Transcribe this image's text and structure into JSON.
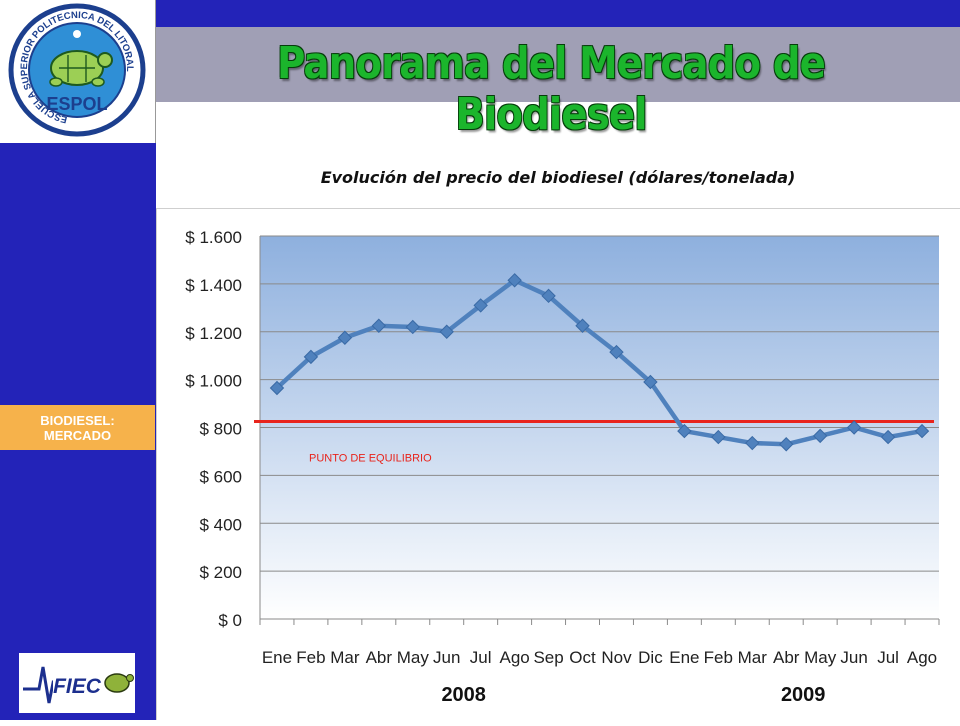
{
  "header": {
    "title": "Panorama del Mercado de Biodiesel",
    "logo_text": "ESPOL",
    "logo_ring_text": "ESCUELA SUPERIOR POLITECNICA DEL LITORAL",
    "logo_icon": "turtle-icon",
    "fiec_text": "FIEC",
    "fiec_icon": "turtle-icon"
  },
  "sidebar": {
    "badge_line1": "BIODIESEL:",
    "badge_line2": "MERCADO"
  },
  "chart_data": {
    "type": "line",
    "title": "Evolución del precio del biodiesel  (dólares/tonelada)",
    "categories": [
      "Ene",
      "Feb",
      "Mar",
      "Abr",
      "May",
      "Jun",
      "Jul",
      "Ago",
      "Sep",
      "Oct",
      "Nov",
      "Dic",
      "Ene",
      "Feb",
      "Mar",
      "Abr",
      "May",
      "Jun",
      "Jul",
      "Ago"
    ],
    "year_labels": [
      {
        "label": "2008",
        "start": 0,
        "end": 11
      },
      {
        "label": "2009",
        "start": 12,
        "end": 19
      }
    ],
    "series": [
      {
        "values": [
          965,
          1095,
          1175,
          1225,
          1220,
          1200,
          1310,
          1415,
          1350,
          1225,
          1115,
          990,
          785,
          760,
          735,
          730,
          765,
          800,
          760,
          785
        ]
      }
    ],
    "reference_line": {
      "value": 825,
      "label": "PUNTO DE EQUILIBRIO",
      "color": "#e8241c"
    },
    "ylim": [
      0,
      1600
    ],
    "yticks": [
      0,
      200,
      400,
      600,
      800,
      1000,
      1200,
      1400,
      1600
    ],
    "ytick_labels": [
      "$ 0",
      "$ 200",
      "$ 400",
      "$ 600",
      "$ 800",
      "$ 1.000",
      "$ 1.200",
      "$ 1.400",
      "$ 1.600"
    ],
    "grid": true,
    "legend": "none",
    "colors": {
      "line": "#4f81bd",
      "background_top": "#8eb0de",
      "background_bottom": "#ffffff"
    }
  }
}
